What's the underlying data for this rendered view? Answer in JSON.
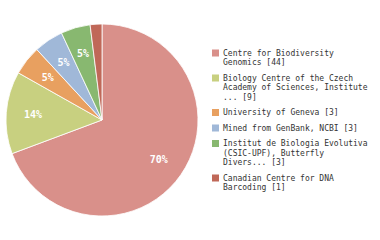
{
  "chart_data": {
    "type": "pie",
    "categories": [
      "Centre for Biodiversity\nGenomics [44]",
      "Biology Centre of the Czech\nAcademy of Sciences, Institute\n... [9]",
      "University of Geneva [3]",
      "Mined from GenBank, NCBI [3]",
      "Institut de Biologia Evolutiva\n(CSIC-UPF), Butterfly\nDivers... [3]",
      "Canadian Centre for DNA\nBarcoding [1]"
    ],
    "values": [
      70,
      14,
      5,
      5,
      5,
      2
    ],
    "value_labels": [
      "70%",
      "14%",
      "5%",
      "5%",
      "5%",
      null
    ],
    "colors": [
      "#d9908a",
      "#c8d080",
      "#e8a060",
      "#a0b8d8",
      "#88b870",
      "#c06858"
    ],
    "data_labels": true,
    "legend": "right"
  }
}
